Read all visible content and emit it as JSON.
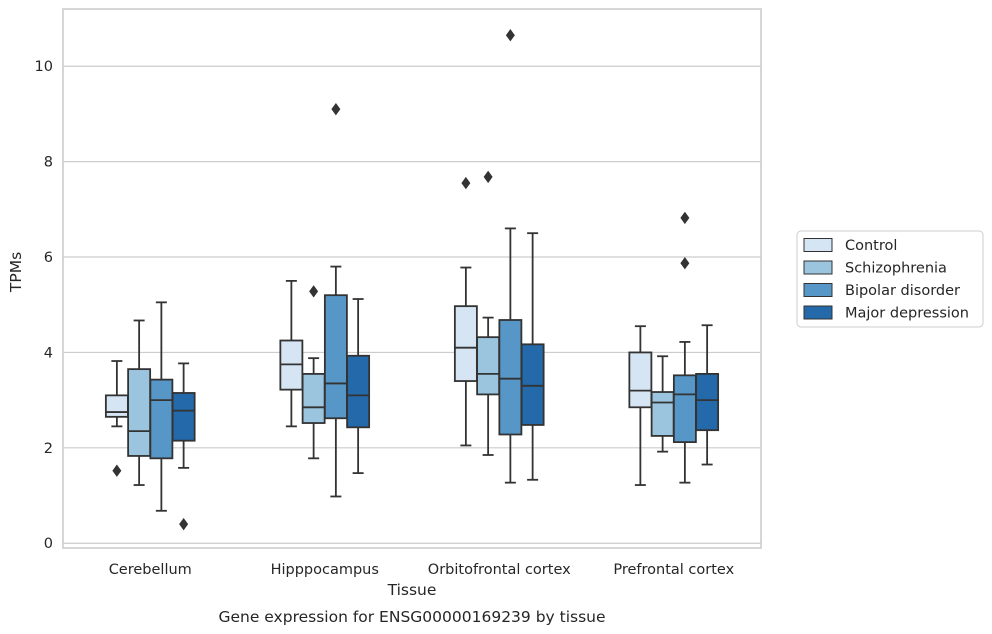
{
  "chart_data": {
    "type": "boxplot",
    "title": "",
    "xlabel": "Tissue",
    "ylabel": "TPMs",
    "caption": "Gene expression for ENSG00000169239 by tissue",
    "ylim": [
      -0.1,
      11.2
    ],
    "yticks": [
      0,
      2,
      4,
      6,
      8,
      10
    ],
    "grid": "horizontal",
    "legend_position": "right",
    "categories": [
      "Cerebellum",
      "Hipppocampus",
      "Orbitofrontal cortex",
      "Prefrontal cortex"
    ],
    "series": [
      {
        "name": "Control",
        "color": "#d6e5f3",
        "boxes": [
          {
            "whisker_low": 2.45,
            "q1": 2.65,
            "median": 2.75,
            "q3": 3.1,
            "whisker_high": 3.82,
            "outliers": [
              1.52
            ]
          },
          {
            "whisker_low": 2.45,
            "q1": 3.22,
            "median": 3.75,
            "q3": 4.25,
            "whisker_high": 5.5,
            "outliers": []
          },
          {
            "whisker_low": 2.05,
            "q1": 3.4,
            "median": 4.1,
            "q3": 4.97,
            "whisker_high": 5.78,
            "outliers": [
              7.55
            ]
          },
          {
            "whisker_low": 1.22,
            "q1": 2.85,
            "median": 3.2,
            "q3": 4.0,
            "whisker_high": 4.55,
            "outliers": []
          }
        ]
      },
      {
        "name": "Schizophrenia",
        "color": "#9bc5df",
        "boxes": [
          {
            "whisker_low": 1.22,
            "q1": 1.83,
            "median": 2.35,
            "q3": 3.65,
            "whisker_high": 4.67,
            "outliers": []
          },
          {
            "whisker_low": 1.78,
            "q1": 2.52,
            "median": 2.85,
            "q3": 3.55,
            "whisker_high": 3.88,
            "outliers": [
              5.28
            ]
          },
          {
            "whisker_low": 1.85,
            "q1": 3.12,
            "median": 3.55,
            "q3": 4.32,
            "whisker_high": 4.73,
            "outliers": [
              7.68
            ]
          },
          {
            "whisker_low": 1.92,
            "q1": 2.25,
            "median": 2.95,
            "q3": 3.17,
            "whisker_high": 3.92,
            "outliers": []
          }
        ]
      },
      {
        "name": "Bipolar disorder",
        "color": "#5797c7",
        "boxes": [
          {
            "whisker_low": 0.68,
            "q1": 1.78,
            "median": 3.0,
            "q3": 3.43,
            "whisker_high": 5.05,
            "outliers": []
          },
          {
            "whisker_low": 0.98,
            "q1": 2.62,
            "median": 3.35,
            "q3": 5.2,
            "whisker_high": 5.8,
            "outliers": [
              9.1
            ]
          },
          {
            "whisker_low": 1.27,
            "q1": 2.28,
            "median": 3.45,
            "q3": 4.68,
            "whisker_high": 6.6,
            "outliers": [
              10.65
            ]
          },
          {
            "whisker_low": 1.27,
            "q1": 2.12,
            "median": 3.12,
            "q3": 3.52,
            "whisker_high": 4.22,
            "outliers": [
              5.87,
              6.82
            ]
          }
        ]
      },
      {
        "name": "Major depression",
        "color": "#2469aa",
        "boxes": [
          {
            "whisker_low": 1.58,
            "q1": 2.15,
            "median": 2.78,
            "q3": 3.15,
            "whisker_high": 3.77,
            "outliers": [
              0.4
            ]
          },
          {
            "whisker_low": 1.47,
            "q1": 2.43,
            "median": 3.1,
            "q3": 3.93,
            "whisker_high": 5.12,
            "outliers": []
          },
          {
            "whisker_low": 1.33,
            "q1": 2.48,
            "median": 3.3,
            "q3": 4.17,
            "whisker_high": 6.5,
            "outliers": []
          },
          {
            "whisker_low": 1.65,
            "q1": 2.37,
            "median": 3.0,
            "q3": 3.55,
            "whisker_high": 4.57,
            "outliers": []
          }
        ]
      }
    ]
  }
}
